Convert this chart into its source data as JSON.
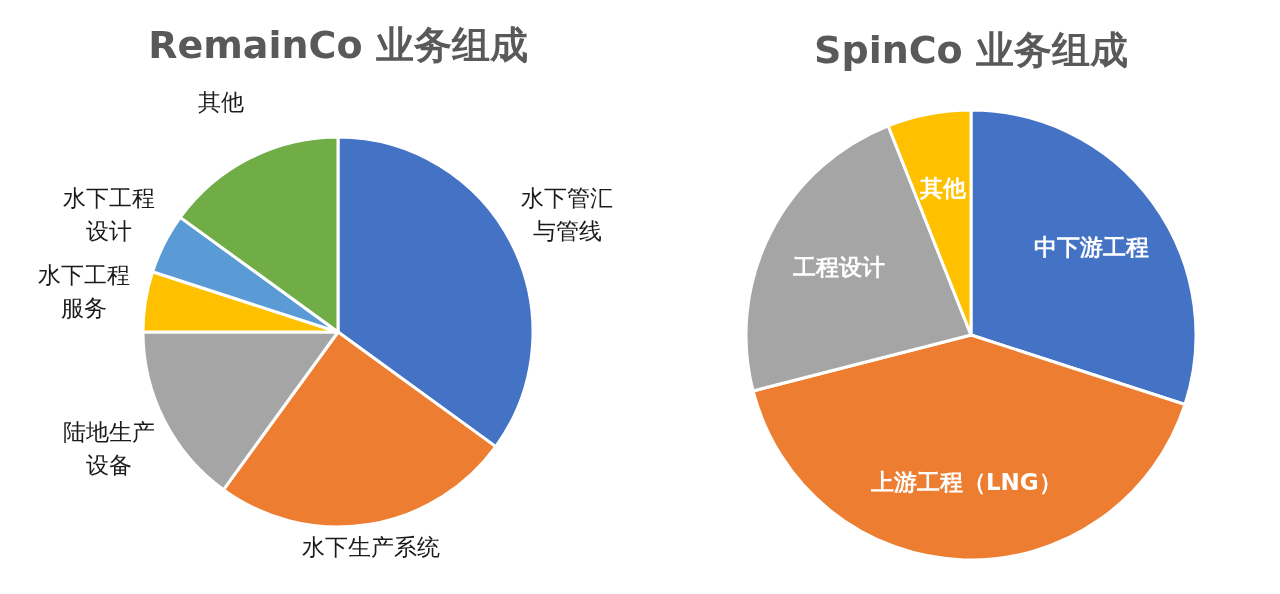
{
  "chart_data": [
    {
      "type": "pie",
      "title": "RemainCo 业务组成",
      "categories": [
        "水下管汇与管线",
        "水下生产系统",
        "陆地生产设备",
        "水下工程服务",
        "水下工程设计",
        "其他"
      ],
      "values": [
        35,
        25,
        15,
        5,
        5,
        15
      ],
      "colors": [
        "#4472c4",
        "#ed7d31",
        "#a5a5a5",
        "#ffc000",
        "#5b9bd5",
        "#70ad47"
      ]
    },
    {
      "type": "pie",
      "title": "SpinCo 业务组成",
      "categories": [
        "中下游工程",
        "上游工程（LNG）",
        "工程设计",
        "其他"
      ],
      "values": [
        30,
        41,
        23,
        6
      ],
      "colors": [
        "#4472c4",
        "#ed7d31",
        "#a5a5a5",
        "#ffc000"
      ]
    }
  ]
}
